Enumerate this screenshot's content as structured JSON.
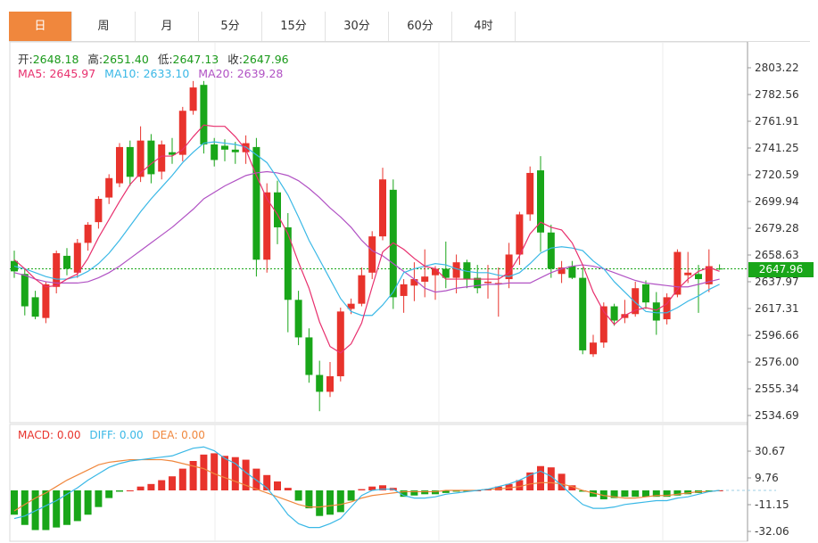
{
  "tabs": [
    {
      "label": "日",
      "active": true
    },
    {
      "label": "周",
      "active": false
    },
    {
      "label": "月",
      "active": false
    },
    {
      "label": "5分",
      "active": false
    },
    {
      "label": "15分",
      "active": false
    },
    {
      "label": "30分",
      "active": false
    },
    {
      "label": "60分",
      "active": false
    },
    {
      "label": "4时",
      "active": false
    }
  ],
  "ohlc": {
    "open_label": "开:",
    "open": "2648.18",
    "high_label": "高:",
    "high": "2651.40",
    "low_label": "低:",
    "low": "2647.13",
    "close_label": "收:",
    "close": "2647.96"
  },
  "ma": {
    "ma5": "MA5: 2645.97",
    "ma10": "MA10: 2633.10",
    "ma20": "MA20: 2639.28"
  },
  "macd": {
    "macd": "MACD: 0.00",
    "diff": "DIFF: 0.00",
    "dea": "DEA: 0.00"
  },
  "current_price": "2647.96",
  "colors": {
    "up": "#e8332c",
    "down": "#19a619",
    "ma5": "#e8306e",
    "ma10": "#3ab8e6",
    "ma20": "#b152c4",
    "dea": "#f0873d",
    "accent": "#f0873d"
  },
  "chart_data": [
    {
      "type": "candlestick",
      "y_ticks": [
        "2803.22",
        "2782.56",
        "2761.91",
        "2741.25",
        "2720.59",
        "2699.94",
        "2679.28",
        "2658.63",
        "2637.97",
        "2617.31",
        "2596.66",
        "2576.00",
        "2555.34",
        "2534.69"
      ],
      "ylim": [
        2526,
        2812
      ],
      "candles": [
        [
          2654,
          2662,
          2641,
          2646
        ],
        [
          2644,
          2648,
          2612,
          2619
        ],
        [
          2626,
          2631,
          2609,
          2611
        ],
        [
          2610,
          2638,
          2606,
          2636
        ],
        [
          2634,
          2662,
          2629,
          2660
        ],
        [
          2658,
          2664,
          2643,
          2648
        ],
        [
          2645,
          2671,
          2641,
          2668
        ],
        [
          2668,
          2684,
          2662,
          2682
        ],
        [
          2684,
          2704,
          2679,
          2702
        ],
        [
          2703,
          2721,
          2698,
          2718
        ],
        [
          2714,
          2745,
          2711,
          2742
        ],
        [
          2742,
          2747,
          2712,
          2719
        ],
        [
          2719,
          2758,
          2715,
          2747
        ],
        [
          2747,
          2752,
          2714,
          2721
        ],
        [
          2723,
          2747,
          2717,
          2744
        ],
        [
          2738,
          2749,
          2729,
          2736
        ],
        [
          2736,
          2773,
          2731,
          2770
        ],
        [
          2770,
          2793,
          2767,
          2788
        ],
        [
          2790,
          2793,
          2737,
          2744
        ],
        [
          2744,
          2749,
          2727,
          2732
        ],
        [
          2743,
          2748,
          2731,
          2740
        ],
        [
          2740,
          2746,
          2729,
          2738
        ],
        [
          2738,
          2751,
          2729,
          2745
        ],
        [
          2742,
          2749,
          2642,
          2655
        ],
        [
          2655,
          2714,
          2645,
          2707
        ],
        [
          2707,
          2716,
          2667,
          2680
        ],
        [
          2680,
          2691,
          2599,
          2624
        ],
        [
          2624,
          2631,
          2589,
          2595
        ],
        [
          2595,
          2602,
          2560,
          2566
        ],
        [
          2566,
          2577,
          2538,
          2553
        ],
        [
          2553,
          2576,
          2549,
          2565
        ],
        [
          2565,
          2618,
          2561,
          2615
        ],
        [
          2617,
          2625,
          2613,
          2621
        ],
        [
          2621,
          2649,
          2619,
          2643
        ],
        [
          2645,
          2677,
          2640,
          2673
        ],
        [
          2673,
          2726,
          2670,
          2717
        ],
        [
          2709,
          2717,
          2617,
          2626
        ],
        [
          2627,
          2640,
          2614,
          2636
        ],
        [
          2635,
          2653,
          2623,
          2640
        ],
        [
          2638,
          2663,
          2626,
          2642
        ],
        [
          2643,
          2650,
          2624,
          2648
        ],
        [
          2648,
          2669,
          2633,
          2641
        ],
        [
          2641,
          2659,
          2629,
          2653
        ],
        [
          2653,
          2655,
          2633,
          2640
        ],
        [
          2641,
          2651,
          2629,
          2633
        ],
        [
          2637,
          2651,
          2625,
          2638
        ],
        [
          2636,
          2649,
          2611,
          2637
        ],
        [
          2640,
          2668,
          2633,
          2659
        ],
        [
          2659,
          2692,
          2651,
          2690
        ],
        [
          2690,
          2727,
          2685,
          2722
        ],
        [
          2724,
          2735,
          2661,
          2676
        ],
        [
          2676,
          2682,
          2641,
          2648
        ],
        [
          2644,
          2654,
          2637,
          2649
        ],
        [
          2650,
          2654,
          2640,
          2641
        ],
        [
          2641,
          2649,
          2582,
          2585
        ],
        [
          2582,
          2597,
          2580,
          2591
        ],
        [
          2591,
          2622,
          2587,
          2619
        ],
        [
          2619,
          2621,
          2604,
          2608
        ],
        [
          2610,
          2624,
          2606,
          2613
        ],
        [
          2613,
          2638,
          2611,
          2633
        ],
        [
          2636,
          2639,
          2617,
          2622
        ],
        [
          2622,
          2630,
          2597,
          2608
        ],
        [
          2609,
          2629,
          2605,
          2626
        ],
        [
          2628,
          2663,
          2626,
          2661
        ],
        [
          2643,
          2661,
          2637,
          2645
        ],
        [
          2644,
          2651,
          2614,
          2640
        ],
        [
          2636,
          2663,
          2630,
          2650
        ],
        [
          2648.18,
          2651.4,
          2647.13,
          2647.96
        ]
      ],
      "ma5": [
        2655,
        2648,
        2640,
        2634,
        2635,
        2640,
        2644,
        2656,
        2672,
        2686,
        2700,
        2713,
        2722,
        2729,
        2735,
        2735,
        2740,
        2750,
        2759,
        2758,
        2758,
        2750,
        2740,
        2720,
        2702,
        2690,
        2675,
        2653,
        2633,
        2607,
        2588,
        2583,
        2590,
        2606,
        2634,
        2661,
        2668,
        2663,
        2656,
        2650,
        2648,
        2640,
        2640,
        2640,
        2640,
        2640,
        2640,
        2645,
        2658,
        2675,
        2684,
        2680,
        2678,
        2668,
        2651,
        2630,
        2615,
        2605,
        2612,
        2616,
        2618,
        2616,
        2621,
        2632,
        2640,
        2646,
        2649,
        2646
      ],
      "ma10": [
        2650,
        2648,
        2645,
        2642,
        2640,
        2640,
        2642,
        2646,
        2652,
        2660,
        2670,
        2681,
        2692,
        2702,
        2711,
        2720,
        2730,
        2738,
        2745,
        2746,
        2745,
        2744,
        2742,
        2736,
        2730,
        2718,
        2705,
        2688,
        2670,
        2655,
        2640,
        2625,
        2615,
        2612,
        2612,
        2620,
        2630,
        2645,
        2648,
        2650,
        2652,
        2651,
        2648,
        2646,
        2645,
        2645,
        2643,
        2642,
        2645,
        2652,
        2660,
        2664,
        2665,
        2664,
        2662,
        2654,
        2648,
        2638,
        2630,
        2622,
        2615,
        2614,
        2614,
        2618,
        2623,
        2627,
        2632,
        2636
      ],
      "ma20": [
        2645,
        2643,
        2640,
        2638,
        2637,
        2637,
        2637,
        2638,
        2641,
        2645,
        2650,
        2656,
        2662,
        2668,
        2674,
        2680,
        2687,
        2694,
        2702,
        2707,
        2712,
        2716,
        2720,
        2722,
        2723,
        2722,
        2720,
        2716,
        2710,
        2703,
        2695,
        2688,
        2680,
        2670,
        2662,
        2658,
        2652,
        2646,
        2640,
        2633,
        2630,
        2631,
        2633,
        2634,
        2635,
        2636,
        2636,
        2637,
        2637,
        2637,
        2641,
        2645,
        2648,
        2650,
        2651,
        2650,
        2648,
        2645,
        2642,
        2639,
        2637,
        2636,
        2635,
        2634,
        2634,
        2636,
        2638,
        2640
      ]
    },
    {
      "type": "macd",
      "y_ticks": [
        "30.67",
        "9.76",
        "-11.15",
        "-32.06"
      ],
      "ylim": [
        -38,
        39
      ],
      "hist": [
        -19,
        -27,
        -31,
        -31,
        -29,
        -27,
        -24,
        -19,
        -13,
        -6,
        -1,
        0,
        3,
        5,
        8,
        11,
        17,
        23,
        28,
        29,
        27,
        26,
        24,
        17,
        12,
        7,
        2,
        -8,
        -14,
        -20,
        -19,
        -17,
        -8,
        1,
        3,
        4,
        2,
        -5,
        -4,
        -3,
        -3,
        -2,
        -1,
        -1,
        0,
        1,
        3,
        5,
        8,
        14,
        19,
        18,
        13,
        4,
        -1,
        -5,
        -7,
        -6,
        -5,
        -5,
        -5,
        -5,
        -5,
        -4,
        -3,
        -2,
        -1,
        0
      ],
      "diff": [
        -22,
        -20,
        -16,
        -12,
        -8,
        -3,
        2,
        8,
        13,
        18,
        21,
        23,
        24,
        25,
        26,
        27,
        30,
        33,
        34,
        31,
        25,
        21,
        14,
        8,
        2,
        -8,
        -19,
        -26,
        -29,
        -29,
        -26,
        -22,
        -13,
        -4,
        0,
        1,
        1,
        -4,
        -6,
        -6,
        -5,
        -3,
        -2,
        -1,
        0,
        1,
        3,
        5,
        8,
        12,
        15,
        11,
        4,
        -4,
        -11,
        -14,
        -14,
        -13,
        -11,
        -10,
        -9,
        -8,
        -8,
        -6,
        -5,
        -3,
        -1,
        0
      ],
      "dea": [
        -16,
        -11,
        -6,
        -2,
        3,
        8,
        12,
        16,
        20,
        22,
        23,
        24,
        24,
        24,
        24,
        23,
        21,
        19,
        17,
        13,
        10,
        7,
        4,
        1,
        -2,
        -5,
        -8,
        -11,
        -13,
        -13,
        -12,
        -11,
        -9,
        -6,
        -4,
        -3,
        -2,
        -1,
        -1,
        -1,
        -1,
        0,
        0,
        0,
        0,
        1,
        1,
        2,
        3,
        5,
        6,
        6,
        5,
        3,
        0,
        -2,
        -4,
        -5,
        -6,
        -6,
        -5,
        -4,
        -4,
        -3,
        -2,
        -1,
        -1,
        0
      ]
    }
  ]
}
